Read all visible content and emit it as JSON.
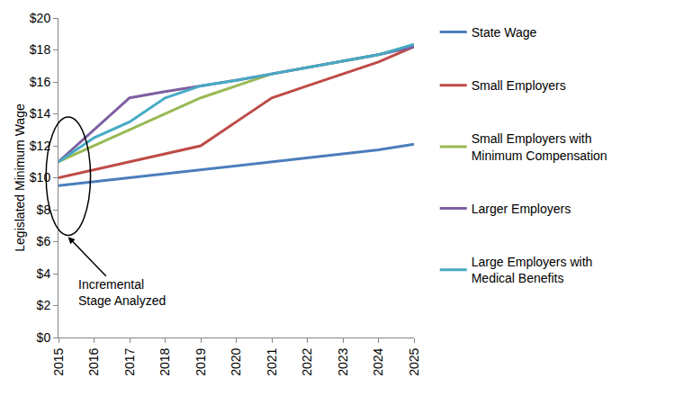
{
  "chart_data": {
    "type": "line",
    "y_label": "Legislated Minimum Wage",
    "annotation": "Incremental Stage Analyzed",
    "categories": [
      "2015",
      "2016",
      "2017",
      "2018",
      "2019",
      "2020",
      "2021",
      "2022",
      "2023",
      "2024",
      "2025"
    ],
    "series": [
      {
        "name": "State Wage",
        "color": "#4a7ebb",
        "values": [
          9.5,
          9.75,
          10,
          10.25,
          10.5,
          10.75,
          11,
          11.25,
          11.5,
          11.75,
          12.1
        ]
      },
      {
        "name": "Small Employers",
        "color": "#be4b48",
        "values": [
          10,
          10.5,
          11,
          11.5,
          12,
          13.5,
          15,
          15.75,
          16.5,
          17.25,
          18.2
        ]
      },
      {
        "name": "Small Employers with Minimum Compensation",
        "color": "#98b954",
        "values": [
          11,
          12,
          13,
          14,
          15,
          15.75,
          16.5,
          16.9,
          17.3,
          17.7,
          18.3
        ]
      },
      {
        "name": "Larger Employers",
        "color": "#7d60a0",
        "values": [
          11,
          13,
          15,
          15.4,
          15.75,
          16.1,
          16.5,
          16.9,
          17.3,
          17.7,
          18.2
        ]
      },
      {
        "name": "Large Employers with Medical Benefits",
        "color": "#46aac5",
        "values": [
          11,
          12.5,
          13.5,
          15,
          15.75,
          16.1,
          16.5,
          16.9,
          17.3,
          17.7,
          18.35
        ]
      }
    ],
    "ylim": [
      0,
      20
    ],
    "yticks": [
      {
        "value": 0,
        "label": "$0"
      },
      {
        "value": 2,
        "label": "$2"
      },
      {
        "value": 4,
        "label": "$4"
      },
      {
        "value": 6,
        "label": "$6"
      },
      {
        "value": 8,
        "label": "$8"
      },
      {
        "value": 10,
        "label": "$10"
      },
      {
        "value": 12,
        "label": "$12"
      },
      {
        "value": 14,
        "label": "$14"
      },
      {
        "value": 16,
        "label": "$16"
      },
      {
        "value": 18,
        "label": "$18"
      },
      {
        "value": 20,
        "label": "$20"
      }
    ],
    "grid": false,
    "legend": "right"
  }
}
